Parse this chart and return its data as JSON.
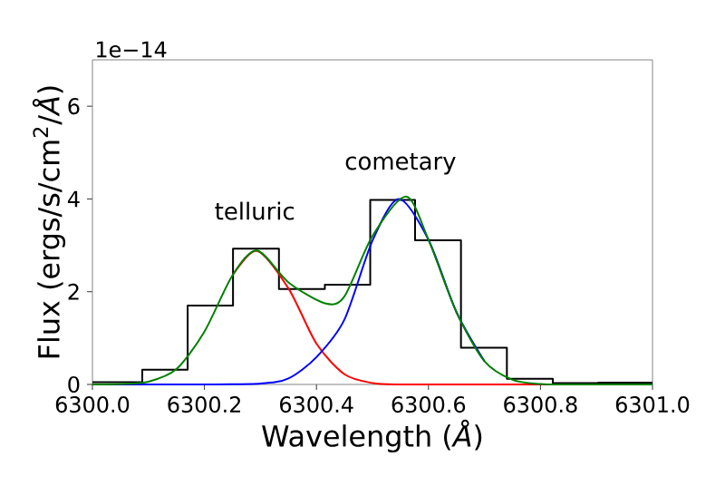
{
  "chart_data": {
    "type": "line",
    "xlabel": "Wavelength (*Å*)",
    "ylabel": "Flux (ergs/s/cm$^{2}$/*Å*)",
    "xlim": [
      6300.0,
      6301.0
    ],
    "ylim": [
      0,
      7
    ],
    "xticks": [
      {
        "value": 6300.0,
        "label": "6300.0"
      },
      {
        "value": 6300.2,
        "label": "6300.2"
      },
      {
        "value": 6300.4,
        "label": "6300.4"
      },
      {
        "value": 6300.6,
        "label": "6300.6"
      },
      {
        "value": 6300.8,
        "label": "6300.8"
      },
      {
        "value": 6301.0,
        "label": "6301.0"
      }
    ],
    "yticks": [
      0,
      2,
      4,
      6
    ],
    "series": [
      {
        "type": "step",
        "color": "#000000",
        "x": [
          6300.0,
          6300.089,
          6300.17,
          6300.251,
          6300.333,
          6300.415,
          6300.496,
          6300.576,
          6300.658,
          6300.74,
          6300.822,
          6300.903,
          6301.0
        ],
        "values": [
          0.05,
          0.32,
          1.7,
          2.93,
          2.06,
          2.15,
          3.98,
          3.11,
          0.79,
          0.12,
          0.03,
          0.04,
          0.04
        ]
      },
      {
        "color": "#ff0000",
        "x": [
          6300.25,
          6300.294,
          6300.35,
          6300.4,
          6300.45,
          6300.5,
          6300.55,
          6300.6,
          6300.7,
          6300.8,
          6300.9,
          6301.0
        ],
        "values": [
          2.35,
          2.88,
          2.07,
          0.88,
          0.22,
          0.03,
          0,
          0,
          0,
          0,
          0,
          0
        ]
      },
      {
        "color": "#0000ff",
        "x": [
          6300.0,
          6300.1,
          6300.2,
          6300.3,
          6300.35,
          6300.4,
          6300.45,
          6300.5,
          6300.547,
          6300.6,
          6300.65,
          6300.7
        ],
        "values": [
          0,
          0,
          0,
          0.02,
          0.13,
          0.59,
          1.4,
          3.1,
          4.0,
          3.12,
          1.56,
          0.5
        ]
      },
      {
        "color": "#008000",
        "x": [
          6300.0,
          6300.05,
          6300.1,
          6300.15,
          6300.2,
          6300.25,
          6300.294,
          6300.35,
          6300.415,
          6300.45,
          6300.5,
          6300.56,
          6300.6,
          6300.65,
          6300.7,
          6300.75,
          6300.8,
          6300.85,
          6300.9,
          6301.0
        ],
        "values": [
          0,
          0.01,
          0.06,
          0.33,
          1.14,
          2.35,
          2.89,
          2.2,
          1.75,
          1.9,
          3.2,
          4.05,
          3.12,
          1.56,
          0.5,
          0.1,
          0.01,
          0,
          0,
          0
        ]
      }
    ],
    "annotations": [
      "1e−14",
      "telluric",
      "cometary"
    ]
  }
}
